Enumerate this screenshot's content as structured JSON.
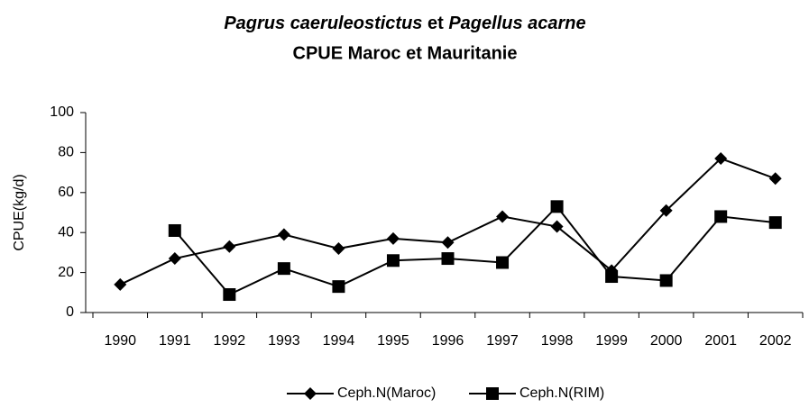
{
  "chart_data": {
    "type": "line",
    "title": [
      "Pagrus caeruleostictus",
      "et",
      "Pagellus acarne"
    ],
    "subtitle": "CPUE Maroc et Mauritanie",
    "y_label": "CPUE(kg/d)",
    "categories": [
      "1990",
      "1991",
      "1992",
      "1993",
      "1994",
      "1995",
      "1996",
      "1997",
      "1998",
      "1999",
      "2000",
      "2001",
      "2002"
    ],
    "series": [
      {
        "name": "Ceph.N(Maroc)",
        "color": "#000000",
        "marker": "diamond",
        "values": [
          14,
          27,
          33,
          39,
          32,
          37,
          35,
          48,
          43,
          21,
          51,
          77,
          67
        ]
      },
      {
        "name": "Ceph.N(RIM)",
        "color": "#000000",
        "marker": "square",
        "values": [
          null,
          41,
          9,
          22,
          13,
          26,
          27,
          25,
          53,
          18,
          16,
          48,
          45
        ]
      }
    ],
    "ylim": [
      0,
      100
    ],
    "yticks": [
      0,
      20,
      40,
      60,
      80,
      100
    ],
    "grid": false,
    "legend": "bottom"
  }
}
